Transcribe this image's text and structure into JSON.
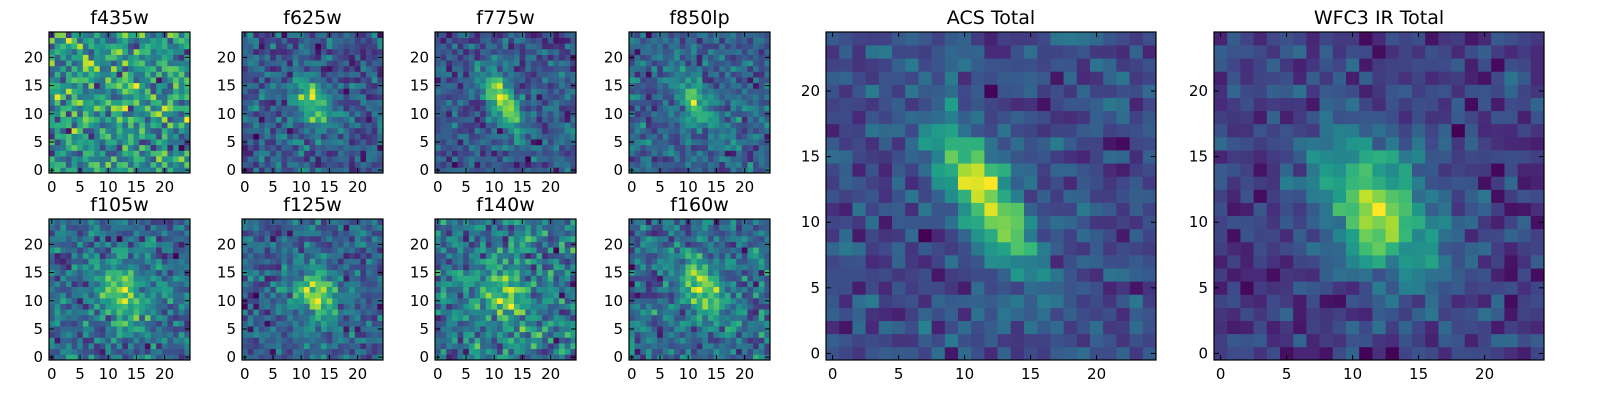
{
  "chart_data": [
    {
      "type": "heatmap",
      "title": "f435w",
      "colormap": "viridis",
      "grid_size": 25,
      "xticks": [
        0,
        5,
        10,
        15,
        20
      ],
      "yticks": [
        0,
        5,
        10,
        15,
        20
      ],
      "xlim": [
        -0.5,
        24.5
      ],
      "ylim": [
        -0.5,
        24.5
      ],
      "source": {
        "center": [
          12,
          11
        ],
        "sigma_major": 3.2,
        "sigma_minor": 1.6,
        "angle_deg": -60,
        "amplitude": 0.15,
        "noise": 0.35,
        "background": 0.62,
        "seed": 11
      }
    },
    {
      "type": "heatmap",
      "title": "f625w",
      "colormap": "viridis",
      "grid_size": 25,
      "xticks": [
        0,
        5,
        10,
        15,
        20
      ],
      "yticks": [
        0,
        5,
        10,
        15,
        20
      ],
      "xlim": [
        -0.5,
        24.5
      ],
      "ylim": [
        -0.5,
        24.5
      ],
      "source": {
        "center": [
          12,
          12
        ],
        "sigma_major": 4.0,
        "sigma_minor": 1.8,
        "angle_deg": -60,
        "amplitude": 0.55,
        "noise": 0.28,
        "background": 0.38,
        "seed": 23
      }
    },
    {
      "type": "heatmap",
      "title": "f775w",
      "colormap": "viridis",
      "grid_size": 25,
      "xticks": [
        0,
        5,
        10,
        15,
        20
      ],
      "yticks": [
        0,
        5,
        10,
        15,
        20
      ],
      "xlim": [
        -0.5,
        24.5
      ],
      "ylim": [
        -0.5,
        24.5
      ],
      "source": {
        "center": [
          11.5,
          12.5
        ],
        "sigma_major": 4.2,
        "sigma_minor": 1.5,
        "angle_deg": -60,
        "amplitude": 0.65,
        "noise": 0.22,
        "background": 0.32,
        "seed": 37
      }
    },
    {
      "type": "heatmap",
      "title": "f850lp",
      "colormap": "viridis",
      "grid_size": 25,
      "xticks": [
        0,
        5,
        10,
        15,
        20
      ],
      "yticks": [
        0,
        5,
        10,
        15,
        20
      ],
      "xlim": [
        -0.5,
        24.5
      ],
      "ylim": [
        -0.5,
        24.5
      ],
      "source": {
        "center": [
          11.5,
          12
        ],
        "sigma_major": 4.0,
        "sigma_minor": 1.7,
        "angle_deg": -60,
        "amplitude": 0.5,
        "noise": 0.28,
        "background": 0.42,
        "seed": 41
      }
    },
    {
      "type": "heatmap",
      "title": "f105w",
      "colormap": "viridis",
      "grid_size": 25,
      "xticks": [
        0,
        5,
        10,
        15,
        20
      ],
      "yticks": [
        0,
        5,
        10,
        15,
        20
      ],
      "xlim": [
        -0.5,
        24.5
      ],
      "ylim": [
        -0.5,
        24.5
      ],
      "source": {
        "center": [
          12.5,
          11
        ],
        "sigma_major": 4.0,
        "sigma_minor": 2.6,
        "angle_deg": -60,
        "amplitude": 0.45,
        "noise": 0.25,
        "background": 0.48,
        "seed": 53
      }
    },
    {
      "type": "heatmap",
      "title": "f125w",
      "colormap": "viridis",
      "grid_size": 25,
      "xticks": [
        0,
        5,
        10,
        15,
        20
      ],
      "yticks": [
        0,
        5,
        10,
        15,
        20
      ],
      "xlim": [
        -0.5,
        24.5
      ],
      "ylim": [
        -0.5,
        24.5
      ],
      "source": {
        "center": [
          12.5,
          11
        ],
        "sigma_major": 3.6,
        "sigma_minor": 2.6,
        "angle_deg": -60,
        "amplitude": 0.55,
        "noise": 0.25,
        "background": 0.4,
        "seed": 67
      }
    },
    {
      "type": "heatmap",
      "title": "f140w",
      "colormap": "viridis",
      "grid_size": 25,
      "xticks": [
        0,
        5,
        10,
        15,
        20
      ],
      "yticks": [
        0,
        5,
        10,
        15,
        20
      ],
      "xlim": [
        -0.5,
        24.5
      ],
      "ylim": [
        -0.5,
        24.5
      ],
      "source": {
        "center": [
          12,
          11
        ],
        "sigma_major": 3.8,
        "sigma_minor": 2.8,
        "angle_deg": -60,
        "amplitude": 0.35,
        "noise": 0.3,
        "background": 0.55,
        "seed": 79
      }
    },
    {
      "type": "heatmap",
      "title": "f160w",
      "colormap": "viridis",
      "grid_size": 25,
      "xticks": [
        0,
        5,
        10,
        15,
        20
      ],
      "yticks": [
        0,
        5,
        10,
        15,
        20
      ],
      "xlim": [
        -0.5,
        24.5
      ],
      "ylim": [
        -0.5,
        24.5
      ],
      "source": {
        "center": [
          12.5,
          12
        ],
        "sigma_major": 4.0,
        "sigma_minor": 2.4,
        "angle_deg": -60,
        "amplitude": 0.5,
        "noise": 0.25,
        "background": 0.45,
        "seed": 83
      }
    },
    {
      "type": "heatmap",
      "title": "ACS Total",
      "colormap": "viridis",
      "grid_size": 25,
      "xticks": [
        0,
        5,
        10,
        15,
        20
      ],
      "yticks": [
        0,
        5,
        10,
        15,
        20
      ],
      "xlim": [
        -0.5,
        24.5
      ],
      "ylim": [
        -0.5,
        24.5
      ],
      "source": {
        "center": [
          11.5,
          12
        ],
        "sigma_major": 4.6,
        "sigma_minor": 1.5,
        "angle_deg": -60,
        "amplitude": 0.7,
        "noise": 0.16,
        "background": 0.36,
        "seed": 97
      }
    },
    {
      "type": "heatmap",
      "title": "WFC3 IR Total",
      "colormap": "viridis",
      "grid_size": 25,
      "xticks": [
        0,
        5,
        10,
        15,
        20
      ],
      "yticks": [
        0,
        5,
        10,
        15,
        20
      ],
      "xlim": [
        -0.5,
        24.5
      ],
      "ylim": [
        -0.5,
        24.5
      ],
      "source": {
        "center": [
          12,
          11
        ],
        "sigma_major": 4.2,
        "sigma_minor": 2.6,
        "angle_deg": -60,
        "amplitude": 0.62,
        "noise": 0.16,
        "background": 0.36,
        "seed": 101
      }
    }
  ]
}
